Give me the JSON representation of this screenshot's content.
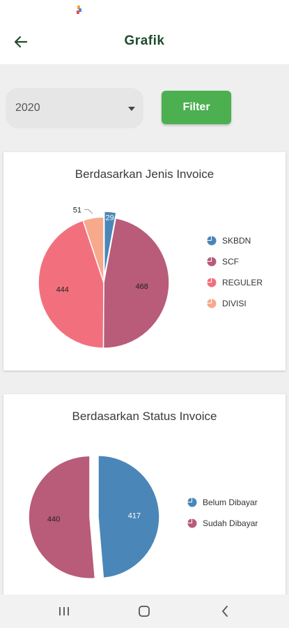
{
  "app": {
    "title": "Grafik"
  },
  "filter": {
    "year": "2020",
    "button_label": "Filter"
  },
  "charts": {
    "jenis": {
      "title": "Berdasarkan Jenis Invoice"
    },
    "status": {
      "title": "Berdasarkan Status Invoice"
    }
  },
  "chart_data": [
    {
      "type": "pie",
      "title": "Berdasarkan Jenis Invoice",
      "categories": [
        "SKBDN",
        "SCF",
        "REGULER",
        "DIVISI"
      ],
      "values": [
        29,
        468,
        444,
        51
      ],
      "colors": [
        "#4a86b8",
        "#b85c7a",
        "#f2707e",
        "#f7a98c"
      ],
      "legend_position": "right"
    },
    {
      "type": "pie",
      "title": "Berdasarkan Status Invoice",
      "categories": [
        "Belum Dibayar",
        "Sudah Dibayar"
      ],
      "values": [
        417,
        440
      ],
      "colors": [
        "#4a86b8",
        "#b85c7a"
      ],
      "legend_position": "right"
    }
  ]
}
